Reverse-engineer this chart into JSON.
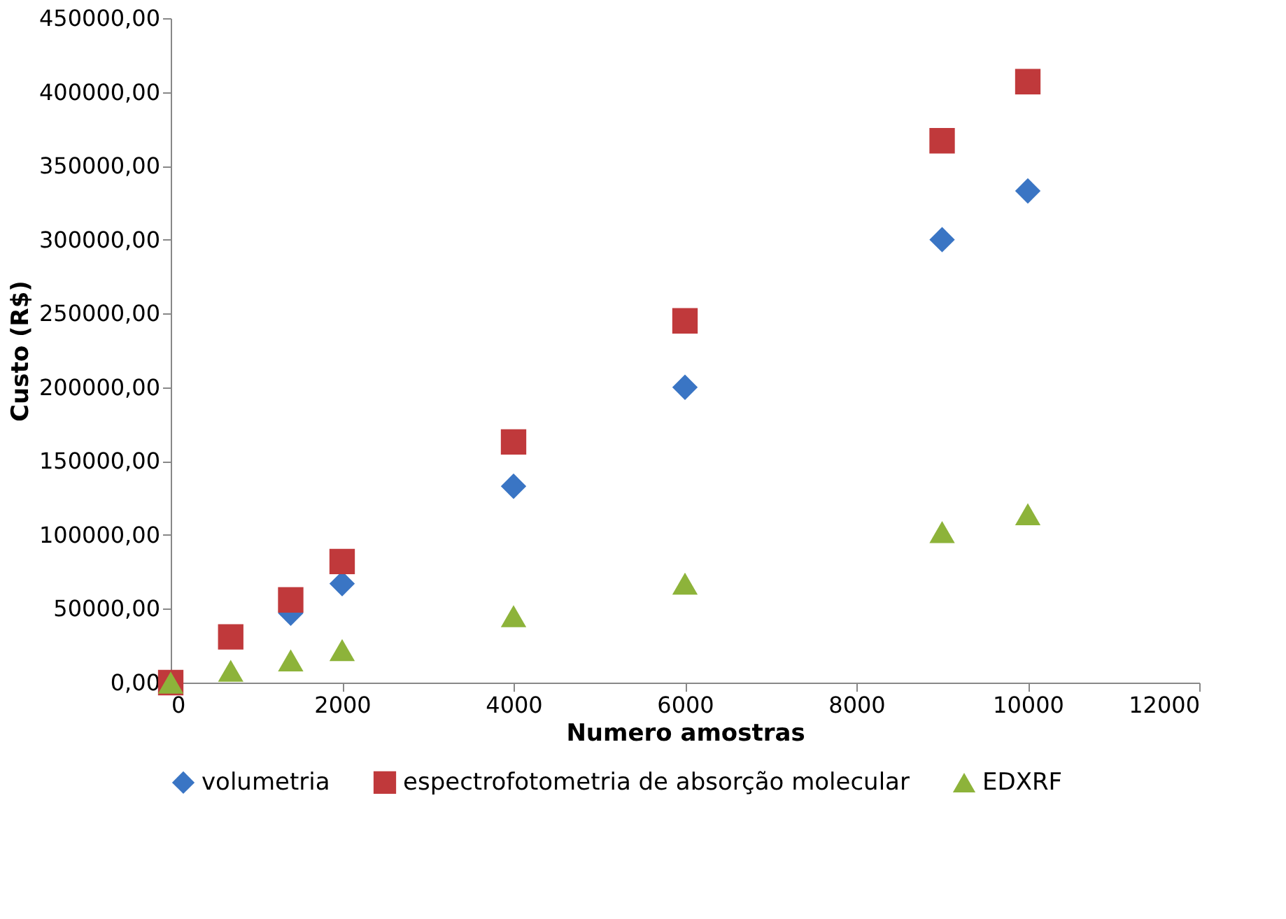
{
  "chart_data": {
    "type": "scatter",
    "xlabel": "Numero amostras",
    "ylabel": "Custo (R$)",
    "x": [
      0,
      700,
      1400,
      2000,
      4000,
      6000,
      9000,
      10000
    ],
    "series": [
      {
        "name": "volumetria",
        "color": "#3a75c4",
        "marker": "diamond",
        "values": [
          null,
          null,
          47000,
          67000,
          133000,
          200000,
          300000,
          333000
        ]
      },
      {
        "name": "espectrofotometria de absorção molecular",
        "color": "#c0393b",
        "marker": "square",
        "values": [
          0,
          31000,
          56000,
          82000,
          163000,
          245000,
          367000,
          407000
        ]
      },
      {
        "name": "EDXRF",
        "color": "#8db33a",
        "marker": "triangle",
        "values": [
          0,
          8000,
          15000,
          22000,
          45000,
          67000,
          102000,
          114000
        ]
      }
    ],
    "xlim": [
      0,
      12000
    ],
    "xticks": [
      0,
      2000,
      4000,
      6000,
      8000,
      10000,
      12000
    ],
    "ylim": [
      0,
      450000
    ],
    "yticks": [
      {
        "value": 0,
        "label": "0,00"
      },
      {
        "value": 50000,
        "label": "50000,00"
      },
      {
        "value": 100000,
        "label": "100000,00"
      },
      {
        "value": 150000,
        "label": "150000,00"
      },
      {
        "value": 200000,
        "label": "200000,00"
      },
      {
        "value": 250000,
        "label": "250000,00"
      },
      {
        "value": 300000,
        "label": "300000,00"
      },
      {
        "value": 350000,
        "label": "350000,00"
      },
      {
        "value": 400000,
        "label": "400000,00"
      },
      {
        "value": 450000,
        "label": "450000,00"
      }
    ],
    "grid": false,
    "legend": "bottom"
  }
}
